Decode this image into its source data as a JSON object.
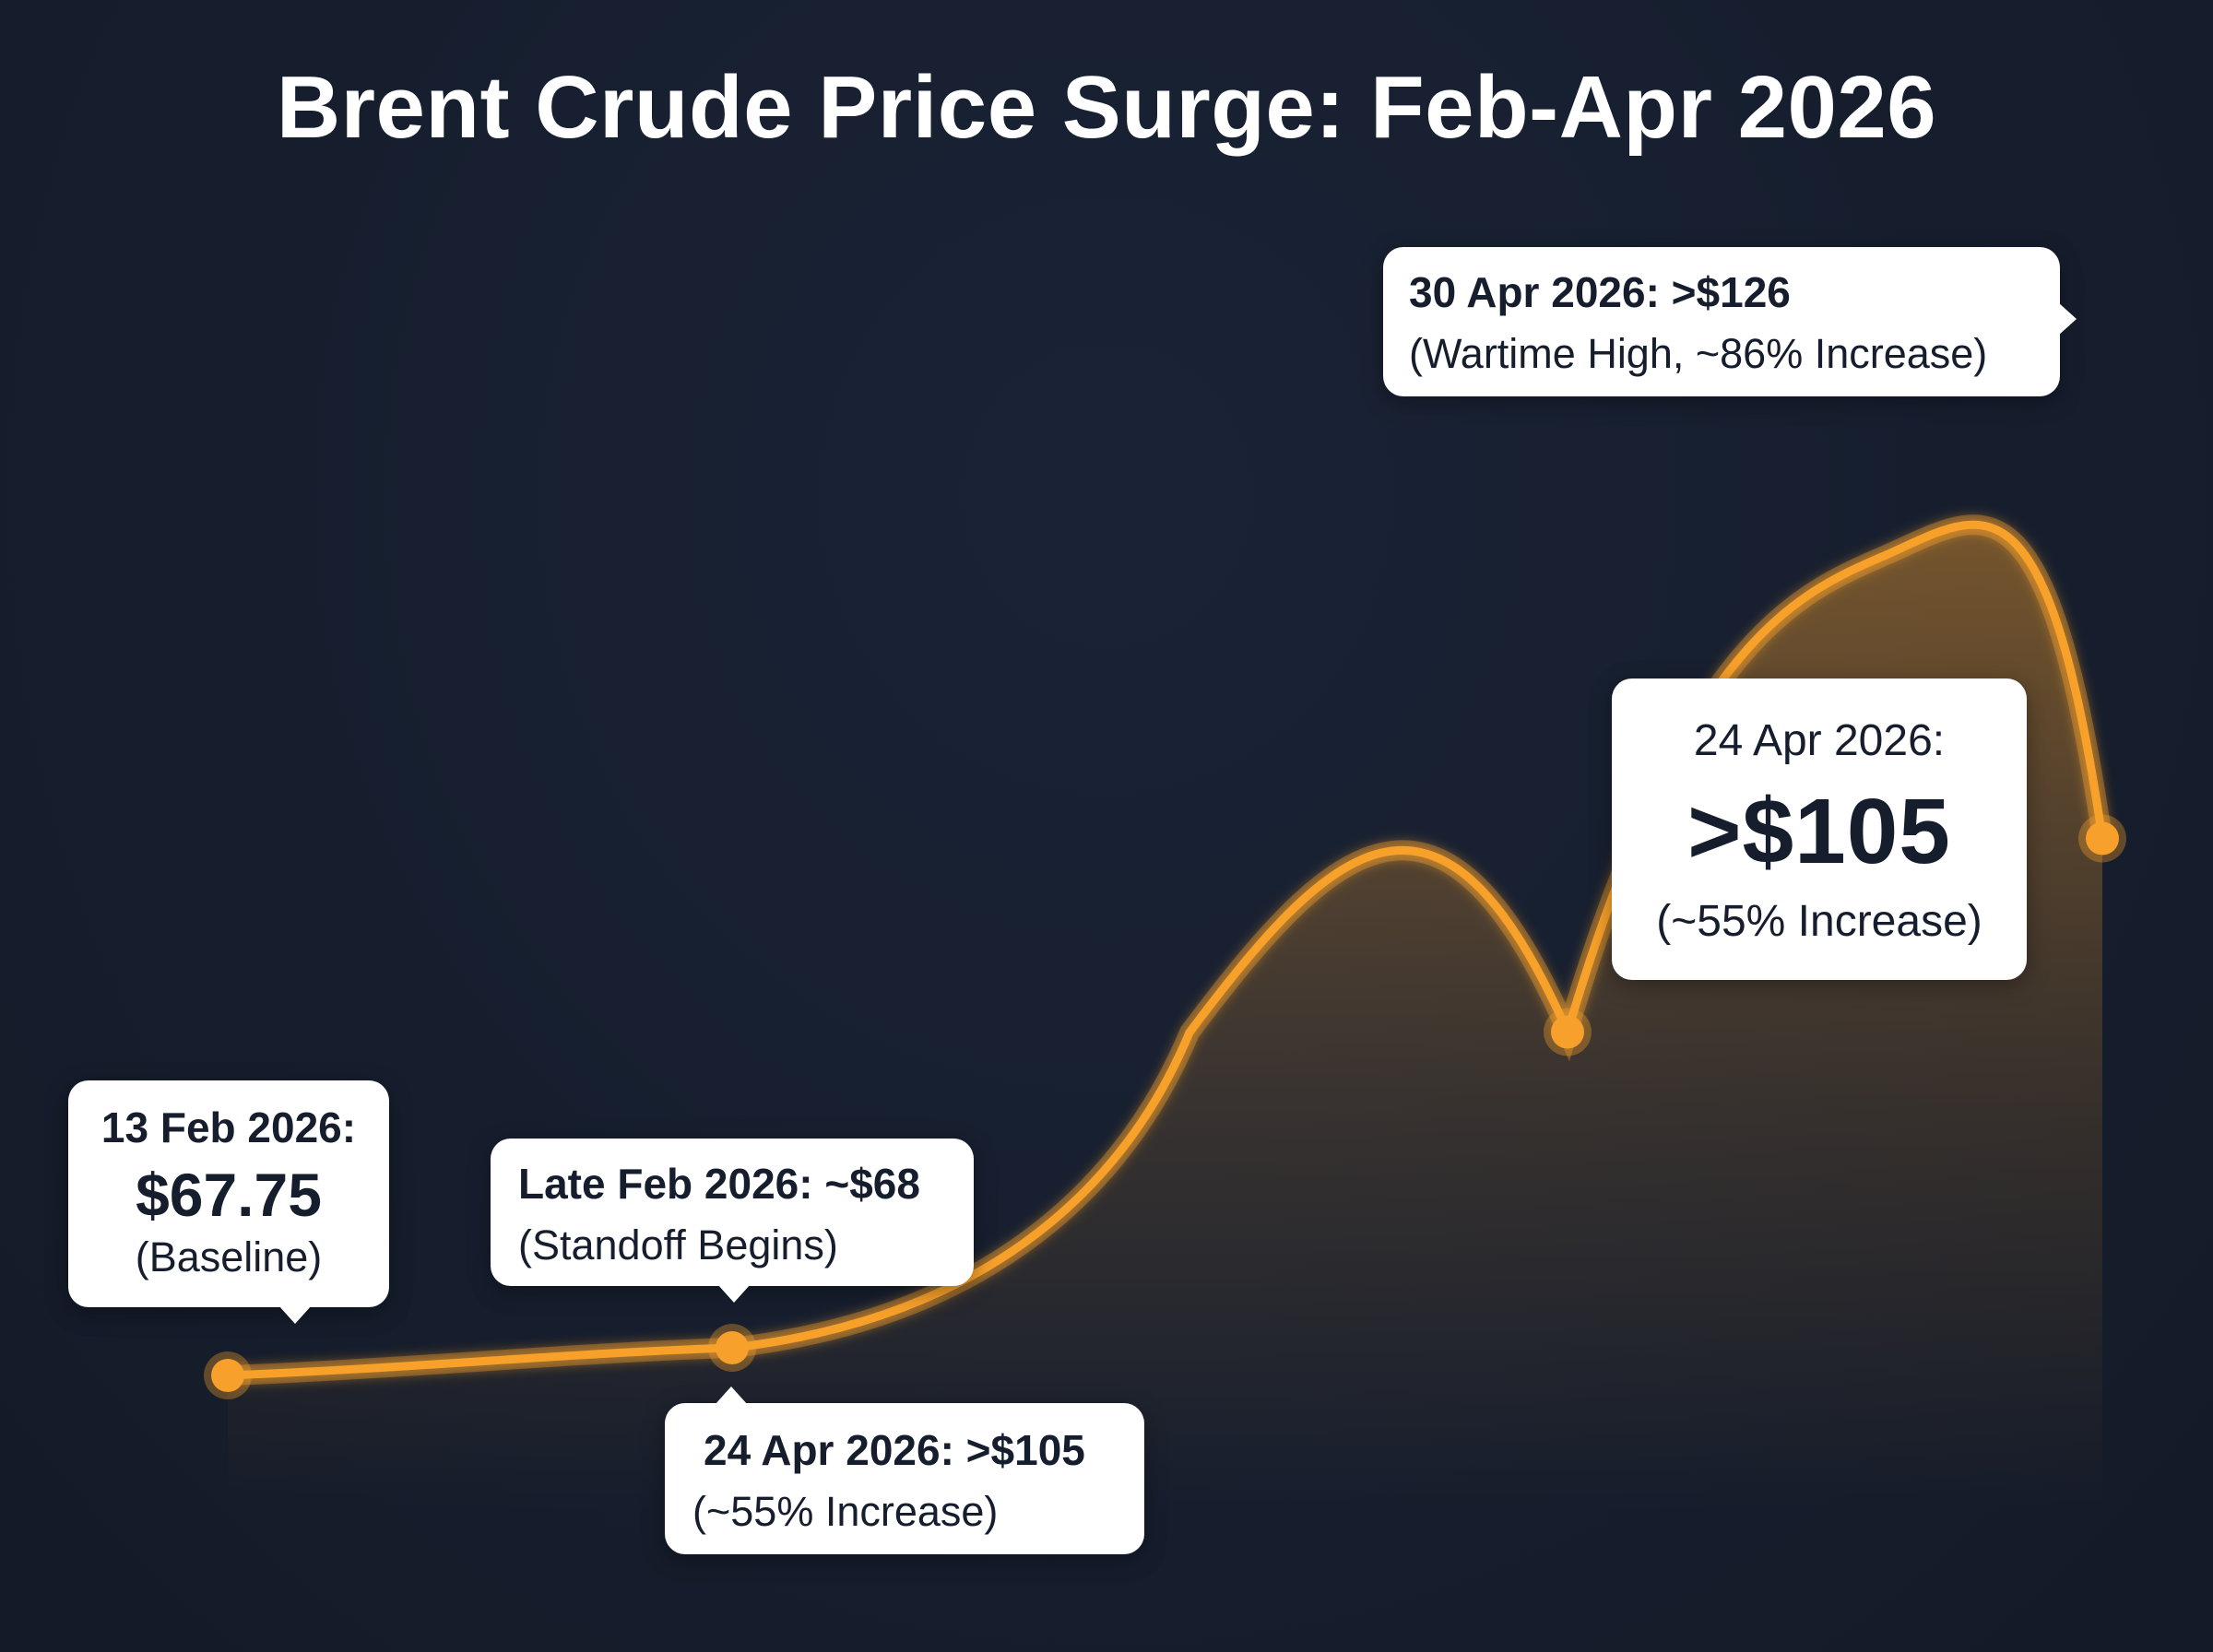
{
  "title": "Brent Crude Price Surge: Feb-Apr 2026",
  "colors": {
    "background": "#161e2e",
    "line": "#f7a02c",
    "point": "#f7a02c",
    "callout_bg": "#ffffff",
    "callout_text": "#161e2e",
    "title": "#ffffff"
  },
  "chart_data": {
    "type": "area",
    "title": "Brent Crude Price Surge: Feb-Apr 2026",
    "xlabel": "",
    "ylabel": "",
    "grid": false,
    "legend": "none",
    "x": [
      "13 Feb 2026",
      "Late Feb 2026",
      "24 Apr 2026",
      "30 Apr 2026"
    ],
    "series": [
      {
        "values": [
          67.75,
          68,
          105,
          126
        ]
      }
    ]
  },
  "callouts": {
    "feb13": {
      "date": "13 Feb 2026:",
      "value": "$67.75",
      "note": "(Baseline)"
    },
    "latefeb": {
      "heading": "Late Feb 2026: ~$68",
      "note": "(Standoff Begins)"
    },
    "apr24_low": {
      "heading": "24 Apr 2026: >$105",
      "note": "(~55% Increase)"
    },
    "apr24_big": {
      "date": "24 Apr 2026:",
      "value": ">$105",
      "note": "(~55% Increase)"
    },
    "apr30": {
      "heading": "30 Apr 2026: >$126",
      "note": "(Wartime High, ~86% Increase)"
    }
  }
}
